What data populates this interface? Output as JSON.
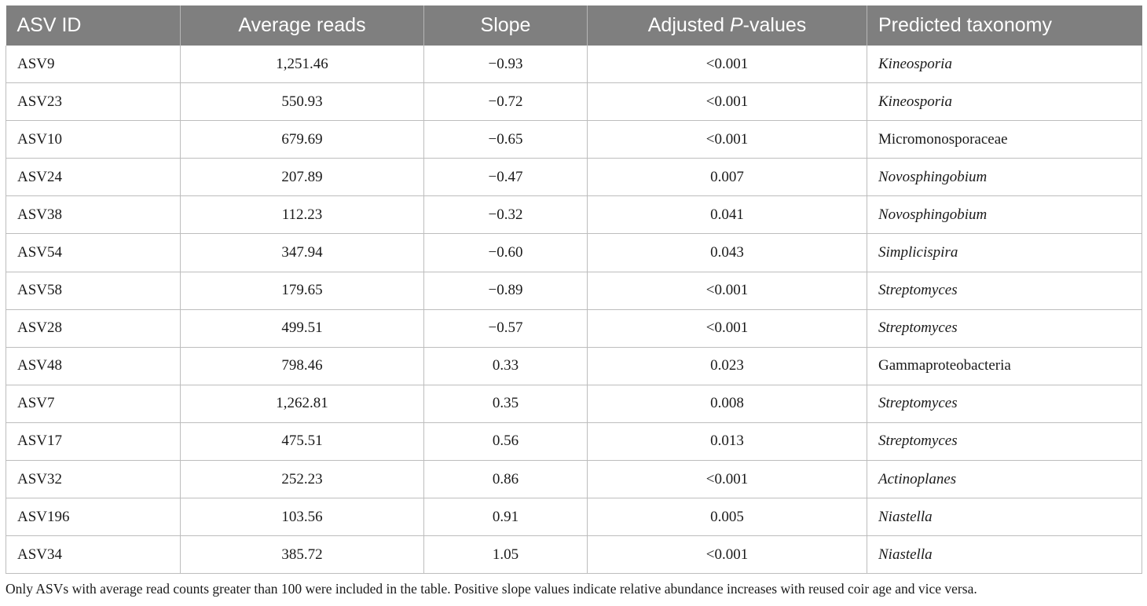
{
  "table": {
    "headers": {
      "asv_id": "ASV ID",
      "average_reads": "Average reads",
      "slope": "Slope",
      "adj_p_prefix": "Adjusted ",
      "adj_p_italic": "P",
      "adj_p_suffix": "-values",
      "taxonomy": "Predicted taxonomy"
    },
    "rows": [
      {
        "asv": "ASV9",
        "reads": "1,251.46",
        "slope": "−0.93",
        "p": "<0.001",
        "taxonomy": "Kineosporia",
        "italic": true
      },
      {
        "asv": "ASV23",
        "reads": "550.93",
        "slope": "−0.72",
        "p": "<0.001",
        "taxonomy": "Kineosporia",
        "italic": true
      },
      {
        "asv": "ASV10",
        "reads": "679.69",
        "slope": "−0.65",
        "p": "<0.001",
        "taxonomy": "Micromonosporaceae",
        "italic": false
      },
      {
        "asv": "ASV24",
        "reads": "207.89",
        "slope": "−0.47",
        "p": "0.007",
        "taxonomy": "Novosphingobium",
        "italic": true
      },
      {
        "asv": "ASV38",
        "reads": "112.23",
        "slope": "−0.32",
        "p": "0.041",
        "taxonomy": "Novosphingobium",
        "italic": true
      },
      {
        "asv": "ASV54",
        "reads": "347.94",
        "slope": "−0.60",
        "p": "0.043",
        "taxonomy": "Simplicispira",
        "italic": true
      },
      {
        "asv": "ASV58",
        "reads": "179.65",
        "slope": "−0.89",
        "p": "<0.001",
        "taxonomy": "Streptomyces",
        "italic": true
      },
      {
        "asv": "ASV28",
        "reads": "499.51",
        "slope": "−0.57",
        "p": "<0.001",
        "taxonomy": "Streptomyces",
        "italic": true
      },
      {
        "asv": "ASV48",
        "reads": "798.46",
        "slope": "0.33",
        "p": "0.023",
        "taxonomy": "Gammaproteobacteria",
        "italic": false
      },
      {
        "asv": "ASV7",
        "reads": "1,262.81",
        "slope": "0.35",
        "p": "0.008",
        "taxonomy": "Streptomyces",
        "italic": true
      },
      {
        "asv": "ASV17",
        "reads": "475.51",
        "slope": "0.56",
        "p": "0.013",
        "taxonomy": "Streptomyces",
        "italic": true
      },
      {
        "asv": "ASV32",
        "reads": "252.23",
        "slope": "0.86",
        "p": "<0.001",
        "taxonomy": "Actinoplanes",
        "italic": true
      },
      {
        "asv": "ASV196",
        "reads": "103.56",
        "slope": "0.91",
        "p": "0.005",
        "taxonomy": "Niastella",
        "italic": true
      },
      {
        "asv": "ASV34",
        "reads": "385.72",
        "slope": "1.05",
        "p": "<0.001",
        "taxonomy": "Niastella",
        "italic": true
      }
    ]
  },
  "footnote": "Only ASVs with average read counts greater than 100 were included in the table. Positive slope values indicate relative abundance increases with reused coir age and vice versa.",
  "colors": {
    "header_bg": "#7f7f7f",
    "header_text": "#ffffff",
    "grid": "#bdbdbd"
  }
}
